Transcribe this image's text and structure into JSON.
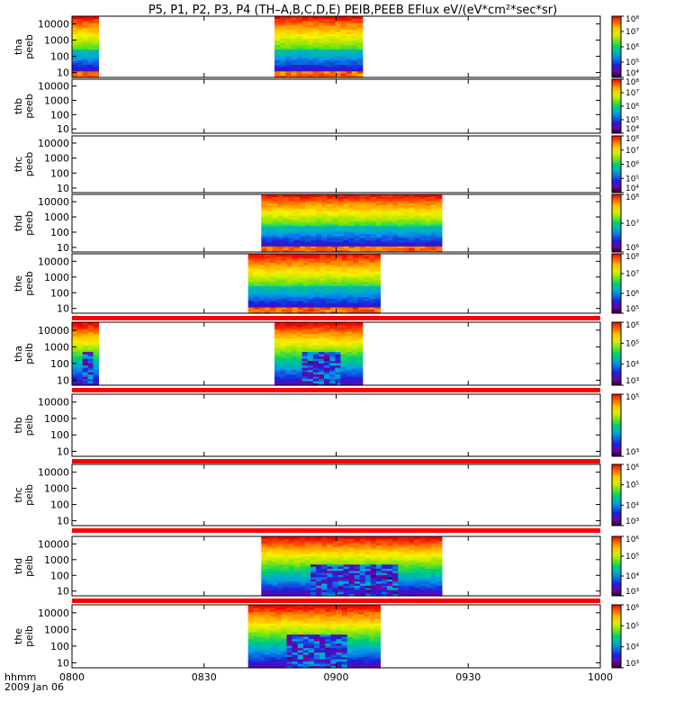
{
  "title": "P5, P1, P2, P3, P4 (TH–A,B,C,D,E) PEIB,PEEB EFlux eV/(eV*cm²*sec*sr)",
  "footer": {
    "time_label": "hhmm",
    "date_label": "2009 Jan 06"
  },
  "chart_data": {
    "type": "heatmap",
    "x_axis": {
      "range": [
        "0800",
        "1000"
      ],
      "ticks": [
        "0800",
        "0830",
        "0900",
        "0930",
        "1000"
      ]
    },
    "y_scale": "log",
    "panels": [
      {
        "probe": "tha",
        "product": "peeb",
        "ylim": [
          5,
          30000
        ],
        "yticks": [
          "10",
          "100",
          "1000",
          "10000"
        ],
        "data_intervals": [
          [
            "0800",
            "0806"
          ],
          [
            "0846",
            "0906"
          ]
        ],
        "cbar_log": [
          4,
          8
        ],
        "cbar_ticks": [
          "10⁴",
          "10⁵",
          "10⁶",
          "10⁷",
          "10⁸"
        ],
        "red_bar_below": false,
        "spectrum": "electron"
      },
      {
        "probe": "thb",
        "product": "peeb",
        "ylim": [
          5,
          30000
        ],
        "yticks": [
          "10",
          "100",
          "1000",
          "10000"
        ],
        "data_intervals": [],
        "cbar_log": [
          4,
          8
        ],
        "cbar_ticks": [
          "10⁴",
          "10⁵",
          "10⁶",
          "10⁷",
          "10⁸"
        ],
        "red_bar_below": false,
        "spectrum": "electron"
      },
      {
        "probe": "thc",
        "product": "peeb",
        "ylim": [
          5,
          30000
        ],
        "yticks": [
          "10",
          "100",
          "1000",
          "10000"
        ],
        "data_intervals": [],
        "cbar_log": [
          4,
          8
        ],
        "cbar_ticks": [
          "10⁴",
          "10⁵",
          "10⁶",
          "10⁷",
          "10⁸"
        ],
        "red_bar_below": false,
        "spectrum": "electron"
      },
      {
        "probe": "thd",
        "product": "peeb",
        "ylim": [
          5,
          30000
        ],
        "yticks": [
          "10",
          "100",
          "1000",
          "10000"
        ],
        "data_intervals": [
          [
            "0843",
            "0924"
          ]
        ],
        "cbar_log": [
          5,
          8
        ],
        "cbar_ticks": [
          "10⁶",
          "10⁷",
          "10⁸"
        ],
        "red_bar_below": false,
        "spectrum": "electron"
      },
      {
        "probe": "the",
        "product": "peeb",
        "ylim": [
          5,
          30000
        ],
        "yticks": [
          "10",
          "100",
          "1000",
          "10000"
        ],
        "data_intervals": [
          [
            "0840",
            "0910"
          ]
        ],
        "cbar_log": [
          5,
          8
        ],
        "cbar_ticks": [
          "10⁵",
          "10⁶",
          "10⁷",
          "10⁸"
        ],
        "red_bar_below": true,
        "spectrum": "electron"
      },
      {
        "probe": "tha",
        "product": "peib",
        "ylim": [
          5,
          30000
        ],
        "yticks": [
          "10",
          "100",
          "1000",
          "10000"
        ],
        "data_intervals": [
          [
            "0800",
            "0806"
          ],
          [
            "0846",
            "0906"
          ]
        ],
        "cbar_log": [
          3,
          6
        ],
        "cbar_ticks": [
          "10³",
          "10⁴",
          "10⁵",
          "10⁶"
        ],
        "red_bar_below": true,
        "spectrum": "ion"
      },
      {
        "probe": "thb",
        "product": "peib",
        "ylim": [
          5,
          30000
        ],
        "yticks": [
          "10",
          "100",
          "1000",
          "10000"
        ],
        "data_intervals": [],
        "cbar_log": [
          3,
          6
        ],
        "cbar_ticks": [
          "10³",
          "10⁵"
        ],
        "red_bar_below": true,
        "spectrum": "ion"
      },
      {
        "probe": "thc",
        "product": "peib",
        "ylim": [
          5,
          30000
        ],
        "yticks": [
          "10",
          "100",
          "1000",
          "10000"
        ],
        "data_intervals": [],
        "cbar_log": [
          3,
          6
        ],
        "cbar_ticks": [
          "10³",
          "10⁴",
          "10⁵",
          "10⁶"
        ],
        "red_bar_below": true,
        "spectrum": "ion"
      },
      {
        "probe": "thd",
        "product": "peib",
        "ylim": [
          5,
          30000
        ],
        "yticks": [
          "10",
          "100",
          "1000",
          "10000"
        ],
        "data_intervals": [
          [
            "0843",
            "0924"
          ]
        ],
        "cbar_log": [
          3,
          6
        ],
        "cbar_ticks": [
          "10³",
          "10⁴",
          "10⁵",
          "10⁶"
        ],
        "red_bar_below": true,
        "spectrum": "ion"
      },
      {
        "probe": "the",
        "product": "peib",
        "ylim": [
          5,
          30000
        ],
        "yticks": [
          "10",
          "100",
          "1000",
          "10000"
        ],
        "data_intervals": [
          [
            "0840",
            "0910"
          ]
        ],
        "cbar_log": [
          3,
          6
        ],
        "cbar_ticks": [
          "10³",
          "10⁴",
          "10⁵",
          "10⁶"
        ],
        "red_bar_below": false,
        "spectrum": "ion"
      }
    ]
  }
}
